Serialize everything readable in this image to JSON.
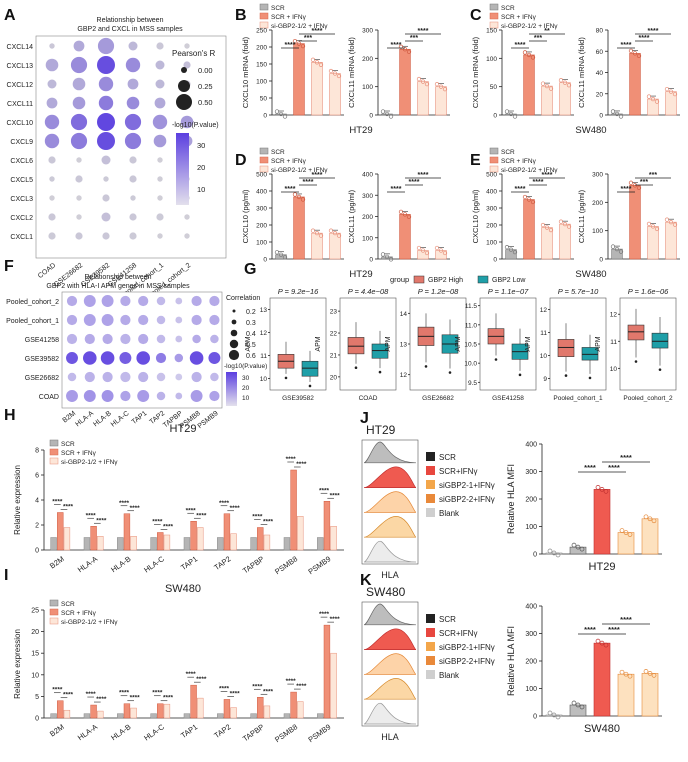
{
  "colors": {
    "scr": "#b5b5b5",
    "ifn": "#f08f76",
    "si": "#fde6d8",
    "si_edge": "#e8907a",
    "high": "#e1786c",
    "low": "#1f9fa8",
    "purple": "#5b3fe0",
    "lightPurple": "#dcd6f4",
    "red": "#e8473f"
  },
  "labels": {
    "A": "A",
    "B": "B",
    "C": "C",
    "D": "D",
    "E": "E",
    "F": "F",
    "G": "G",
    "H": "H",
    "I": "I",
    "J": "J",
    "K": "K"
  },
  "panelA": {
    "title1": "Relationship between",
    "title2": "GBP2 and CXCL in MSS samples",
    "rows": [
      "CXCL14",
      "CXCL13",
      "CXCL12",
      "CXCL11",
      "CXCL10",
      "CXCL9",
      "CXCL6",
      "CXCL5",
      "CXCL3",
      "CXCL2",
      "CXCL1"
    ],
    "cols": [
      "COAD",
      "GSE26682",
      "GSE39582",
      "GSE41258",
      "Pooled_cohort_1",
      "Pooled_cohort_2"
    ],
    "size_title": "Pearson's R",
    "size_labels": [
      "0.00",
      "0.25",
      "0.50"
    ],
    "color_title": "-log10(P.value)",
    "color_ticks": [
      "30",
      "20",
      "10"
    ]
  },
  "panelF": {
    "title1": "Relationship between",
    "title2": "GBP2 with HLA-I APM genes in MSS samples",
    "rows": [
      "Pooled_cohort_2",
      "Pooled_cohort_1",
      "GSE41258",
      "GSE39582",
      "GSE26682",
      "COAD"
    ],
    "cols": [
      "B2M",
      "HLA-A",
      "HLA-B",
      "HLA-C",
      "TAP1",
      "TAP2",
      "TAPBP",
      "PSMB8",
      "PSMB9"
    ],
    "size_title": "Correlation",
    "size_labels": [
      "0.2",
      "0.3",
      "0.4",
      "0.5",
      "0.6"
    ],
    "color_title": "-log10(P.value)",
    "color_ticks": [
      "30",
      "20",
      "10"
    ]
  },
  "legend3": {
    "scr": "SCR",
    "ifn": "SCR + IFNγ",
    "si": "si-GBP2-1/2 + IFNγ"
  },
  "panelB": {
    "cell": "HT29",
    "charts": [
      {
        "ylabel": "CXCL10 mRNA (fold)",
        "ticks": [
          "0",
          "50",
          "100",
          "150",
          "200",
          "250"
        ],
        "ymax": 250,
        "values": [
          1,
          210,
          155,
          122
        ],
        "sig": [
          "****",
          "***",
          "****"
        ]
      },
      {
        "ylabel": "CXCL11 mRNA (fold)",
        "ticks": [
          "0",
          "100",
          "200",
          "300"
        ],
        "ymax": 300,
        "values": [
          1,
          232,
          118,
          100
        ],
        "sig": [
          "****",
          "***",
          "****"
        ]
      }
    ]
  },
  "panelC": {
    "cell": "SW480",
    "charts": [
      {
        "ylabel": "CXCL10 mRNA (fold)",
        "ticks": [
          "0",
          "50",
          "100",
          "150"
        ],
        "ymax": 150,
        "values": [
          1,
          106,
          51,
          57
        ],
        "sig": [
          "****",
          "***",
          "**"
        ]
      },
      {
        "ylabel": "CXCL11 mRNA (fold)",
        "ticks": [
          "0",
          "20",
          "40",
          "60",
          "80"
        ],
        "ymax": 80,
        "values": [
          1,
          58,
          15,
          22
        ],
        "sig": [
          "****",
          "****",
          "****"
        ]
      }
    ]
  },
  "panelD": {
    "cell": "HT29",
    "charts": [
      {
        "ylabel": "CXCL10 (pg/ml)",
        "ticks": [
          "0",
          "100",
          "200",
          "300",
          "400",
          "500"
        ],
        "ymax": 500,
        "values": [
          25,
          365,
          152,
          152
        ],
        "sig": [
          "****",
          "****",
          "****"
        ]
      },
      {
        "ylabel": "CXCL11 (pg/ml)",
        "ticks": [
          "0",
          "100",
          "200",
          "300",
          "400"
        ],
        "ymax": 400,
        "values": [
          10,
          210,
          40,
          40
        ],
        "sig": [
          "****",
          "****",
          "****"
        ]
      }
    ]
  },
  "panelE": {
    "cell": "SW480",
    "charts": [
      {
        "ylabel": "CXCL10 (pg/ml)",
        "ticks": [
          "0",
          "100",
          "200",
          "300",
          "400",
          "500"
        ],
        "ymax": 500,
        "values": [
          55,
          350,
          185,
          205
        ],
        "sig": [
          "****",
          "****",
          "****"
        ]
      },
      {
        "ylabel": "CXCL11 (pg/ml)",
        "ticks": [
          "0",
          "100",
          "200",
          "300"
        ],
        "ymax": 300,
        "values": [
          35,
          260,
          115,
          130
        ],
        "sig": [
          "****",
          "***",
          "***"
        ]
      }
    ]
  },
  "panelG": {
    "legend_title": "group",
    "legend_high": "GBP2 High",
    "legend_low": "GBP2 Low",
    "ylabel": "APM",
    "plots": [
      {
        "name": "GSE39582",
        "p": "P = 9.2e−16",
        "ticks": [
          "10",
          "11",
          "12",
          "13"
        ],
        "ymin": 9.5,
        "ymax": 13.5,
        "high": [
          10.2,
          10.45,
          10.75,
          11.05,
          11.6
        ],
        "low": [
          9.85,
          10.1,
          10.45,
          10.75,
          11.2
        ]
      },
      {
        "name": "COAD",
        "p": "P = 4.4e−08",
        "ticks": [
          "20",
          "21",
          "22",
          "23"
        ],
        "ymin": 19.4,
        "ymax": 23.6,
        "high": [
          20.6,
          21.05,
          21.4,
          21.8,
          22.5
        ],
        "low": [
          20.4,
          20.85,
          21.2,
          21.5,
          22.1
        ]
      },
      {
        "name": "GSE26682",
        "p": "P = 1.2e−08",
        "ticks": [
          "12",
          "13",
          "14"
        ],
        "ymin": 11.5,
        "ymax": 14.5,
        "high": [
          12.4,
          12.95,
          13.25,
          13.55,
          14.0
        ],
        "low": [
          12.2,
          12.7,
          13.0,
          13.3,
          13.8
        ]
      },
      {
        "name": "GSE41258",
        "p": "P = 1.1e−07",
        "ticks": [
          "9.5",
          "10.0",
          "10.5",
          "11.0",
          "11.5"
        ],
        "ymin": 9.3,
        "ymax": 11.7,
        "high": [
          10.2,
          10.5,
          10.7,
          10.9,
          11.3
        ],
        "low": [
          9.8,
          10.1,
          10.3,
          10.5,
          10.9
        ]
      },
      {
        "name": "Pooled_cohort_1",
        "p": "P = 5.7e−10",
        "ticks": [
          "9",
          "10",
          "11",
          "12"
        ],
        "ymin": 8.5,
        "ymax": 12.5,
        "high": [
          9.3,
          9.95,
          10.35,
          10.7,
          11.4
        ],
        "low": [
          9.2,
          9.8,
          10.05,
          10.35,
          10.9
        ]
      },
      {
        "name": "Pooled_cohort_2",
        "p": "P = 1.6e−06",
        "ticks": [
          "10",
          "11",
          "12"
        ],
        "ymin": 9.2,
        "ymax": 12.6,
        "high": [
          10.4,
          11.05,
          11.35,
          11.6,
          12.2
        ],
        "low": [
          10.1,
          10.75,
          11.0,
          11.3,
          11.9
        ]
      }
    ]
  },
  "panelH": {
    "title": "HT29",
    "ylabel": "Relative expression",
    "ticks": [
      "0",
      "2",
      "4",
      "6",
      "8"
    ],
    "ymax": 8,
    "genes": [
      "B2M",
      "HLA-A",
      "HLA-B",
      "HLA-C",
      "TAP1",
      "TAP2",
      "TAPBP",
      "PSMB8",
      "PSMB9"
    ],
    "values": [
      [
        1,
        3,
        1.8
      ],
      [
        1,
        1.9,
        1.1
      ],
      [
        1,
        2.9,
        1.1
      ],
      [
        1,
        1.4,
        1.2
      ],
      [
        1,
        2.3,
        1.8
      ],
      [
        1,
        2.9,
        1.3
      ],
      [
        1,
        1.8,
        1.2
      ],
      [
        1,
        6.4,
        2.7
      ],
      [
        1,
        3.9,
        1.9
      ]
    ],
    "sig": [
      "****",
      "****",
      "****"
    ]
  },
  "panelI": {
    "title": "SW480",
    "ylabel": "Relative expression",
    "ticks": [
      "0",
      "5",
      "10",
      "15",
      "20",
      "25"
    ],
    "ymax": 25,
    "genes": [
      "B2M",
      "HLA-A",
      "HLA-B",
      "HLA-C",
      "TAP1",
      "TAP2",
      "TAPBP",
      "PSMB8",
      "PSMB9"
    ],
    "values": [
      [
        1,
        4,
        1.8
      ],
      [
        1,
        3,
        1.6
      ],
      [
        1,
        3.3,
        2.3
      ],
      [
        1,
        3.3,
        3.2
      ],
      [
        1,
        7.6,
        4.6
      ],
      [
        1,
        4.3,
        2.4
      ],
      [
        1,
        4.8,
        2.8
      ],
      [
        1,
        6,
        3.8
      ],
      [
        1,
        21.5,
        15
      ]
    ],
    "sig": [
      [
        "****",
        "****",
        "****"
      ],
      [
        "****",
        "****",
        "****"
      ],
      [
        "****",
        "****",
        "*"
      ],
      [
        "****",
        "****",
        "*"
      ],
      [
        "****",
        "****",
        "****"
      ],
      [
        "****",
        "****",
        "***"
      ],
      [
        "****",
        "****",
        "**"
      ],
      [
        "****",
        "****",
        "****"
      ],
      [
        "****",
        "****",
        "****"
      ]
    ]
  },
  "panelJ": {
    "title": "HT29",
    "xlabel": "HLA",
    "legend": [
      "SCR",
      "SCR+IFNγ",
      "siGBP2-1+IFNγ",
      "siGBP2-2+IFNγ",
      "Blank"
    ],
    "bar": {
      "ylabel": "Relative HLA MFI",
      "ticks": [
        "0",
        "100",
        "200",
        "300",
        "400"
      ],
      "ymax": 400,
      "values": [
        2,
        25,
        235,
        78,
        128
      ],
      "sig": [
        "****",
        "****",
        "****"
      ],
      "cell": "HT29"
    }
  },
  "panelK": {
    "title": "SW480",
    "xlabel": "HLA",
    "legend": [
      "SCR",
      "SCR+IFNγ",
      "siGBP2-1+IFNγ",
      "siGBP2-2+IFNγ",
      "Blank"
    ],
    "bar": {
      "ylabel": "Relative HLA MFI",
      "ticks": [
        "0",
        "100",
        "200",
        "300",
        "400"
      ],
      "ymax": 400,
      "values": [
        2,
        40,
        265,
        152,
        155
      ],
      "sig": [
        "****",
        "****",
        "****"
      ],
      "cell": "SW480"
    }
  }
}
